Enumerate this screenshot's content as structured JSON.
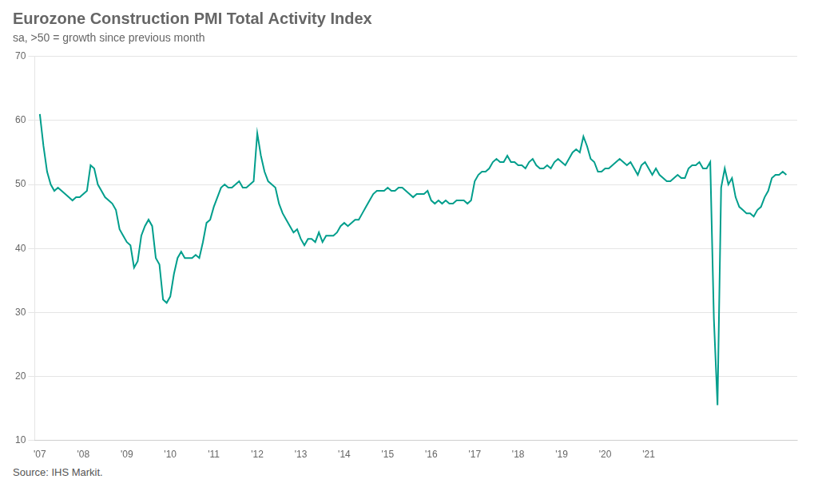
{
  "chart_data": {
    "type": "line",
    "title": "Eurozone Construction PMI Total Activity Index",
    "subtitle": "sa, >50 = growth since previous month",
    "source": "Source: IHS Markit.",
    "color": "#009E8C",
    "grid": "y",
    "x": [
      2007,
      2007.083333,
      2007.166667,
      2007.25,
      2007.333333,
      2007.416667,
      2007.5,
      2007.583333,
      2007.666667,
      2007.75,
      2007.833333,
      2007.916667,
      2008,
      2008.083333,
      2008.166667,
      2008.25,
      2008.333333,
      2008.416667,
      2008.5,
      2008.583333,
      2008.666667,
      2008.75,
      2008.833333,
      2008.916667,
      2009,
      2009.083333,
      2009.166667,
      2009.25,
      2009.333333,
      2009.416667,
      2009.5,
      2009.583333,
      2009.666667,
      2009.75,
      2009.833333,
      2009.916667,
      2010,
      2010.083333,
      2010.166667,
      2010.25,
      2010.333333,
      2010.416667,
      2010.5,
      2010.583333,
      2010.666667,
      2010.75,
      2010.833333,
      2010.916667,
      2011,
      2011.083333,
      2011.166667,
      2011.25,
      2011.333333,
      2011.416667,
      2011.5,
      2011.583333,
      2011.666667,
      2011.75,
      2011.833333,
      2011.916667,
      2012,
      2012.083333,
      2012.166667,
      2012.25,
      2012.333333,
      2012.416667,
      2012.5,
      2012.583333,
      2012.666667,
      2012.75,
      2012.833333,
      2012.916667,
      2013,
      2013.083333,
      2013.166667,
      2013.25,
      2013.333333,
      2013.416667,
      2013.5,
      2013.583333,
      2013.666667,
      2013.75,
      2013.833333,
      2013.916667,
      2014,
      2014.083333,
      2014.166667,
      2014.25,
      2014.333333,
      2014.416667,
      2014.5,
      2014.583333,
      2014.666667,
      2014.75,
      2014.833333,
      2014.916667,
      2015,
      2015.083333,
      2015.166667,
      2015.25,
      2015.333333,
      2015.416667,
      2015.5,
      2015.583333,
      2015.666667,
      2015.75,
      2015.833333,
      2015.916667,
      2016,
      2016.083333,
      2016.166667,
      2016.25,
      2016.333333,
      2016.416667,
      2016.5,
      2016.583333,
      2016.666667,
      2016.75,
      2016.833333,
      2016.916667,
      2017,
      2017.083333,
      2017.166667,
      2017.25,
      2017.333333,
      2017.416667,
      2017.5,
      2017.583333,
      2017.666667,
      2017.75,
      2017.833333,
      2017.916667,
      2018,
      2018.083333,
      2018.166667,
      2018.25,
      2018.333333,
      2018.416667,
      2018.5,
      2018.583333,
      2018.666667,
      2018.75,
      2018.833333,
      2018.916667,
      2019,
      2019.083333,
      2019.166667,
      2019.25,
      2019.333333,
      2019.416667,
      2019.5,
      2019.583333,
      2019.666667,
      2019.75,
      2019.833333,
      2019.916667,
      2020,
      2020.083333,
      2020.166667,
      2020.25,
      2020.333333,
      2020.416667,
      2020.5,
      2020.583333,
      2020.666667,
      2020.75,
      2020.833333,
      2020.916667,
      2021,
      2021.083333,
      2021.166667,
      2021.25,
      2021.333333,
      2021.416667,
      2021.5,
      2021.583333,
      2021.666667,
      2021.75,
      2021.833333,
      2021.916667,
      2022,
      2022.083333,
      2022.166667,
      2022.25,
      2022.333333,
      2022.416667,
      2022.5,
      2022.583333,
      2022.666667,
      2022.75,
      2022.833333,
      2022.916667,
      2023,
      2023.083333,
      2023.166667,
      2023.25,
      2023.333333,
      2023.416667,
      2023.5,
      2023.583333,
      2023.666667,
      2023.75,
      2023.833333,
      2023.916667,
      2024,
      2024.083333,
      2024.166667
    ],
    "values": [
      61.0,
      56.0,
      52.0,
      50.0,
      49.0,
      49.5,
      49.0,
      48.5,
      48.0,
      47.5,
      48.0,
      48.0,
      48.5,
      49.0,
      53.0,
      52.5,
      50.0,
      49.0,
      48.0,
      47.5,
      47.0,
      46.0,
      43.0,
      42.0,
      41.0,
      40.5,
      37.0,
      38.0,
      42.0,
      43.5,
      44.5,
      43.5,
      38.5,
      37.5,
      32.0,
      31.5,
      32.5,
      36.0,
      38.5,
      39.5,
      38.5,
      38.5,
      38.5,
      39.0,
      38.5,
      41.0,
      44.0,
      44.5,
      46.5,
      48.0,
      49.5,
      50.0,
      49.5,
      49.5,
      50.0,
      50.5,
      49.5,
      49.5,
      50.0,
      50.5,
      58.0,
      54.5,
      52.0,
      50.5,
      50.0,
      49.5,
      47.0,
      45.5,
      44.5,
      43.5,
      42.5,
      43.0,
      41.5,
      40.5,
      41.5,
      41.5,
      41.0,
      42.5,
      41.0,
      42.0,
      42.0,
      42.0,
      42.5,
      43.5,
      44.0,
      43.5,
      44.0,
      44.5,
      44.5,
      45.5,
      46.5,
      47.5,
      48.5,
      49.0,
      49.0,
      49.0,
      49.5,
      49.0,
      49.0,
      49.5,
      49.5,
      49.0,
      48.5,
      48.0,
      48.5,
      48.5,
      48.5,
      49.0,
      47.5,
      47.0,
      47.5,
      47.0,
      47.5,
      47.0,
      47.0,
      47.5,
      47.5,
      47.5,
      47.0,
      47.5,
      50.5,
      51.5,
      52.0,
      52.0,
      52.5,
      53.5,
      54.0,
      53.5,
      53.5,
      54.5,
      53.5,
      53.5,
      53.0,
      53.0,
      52.5,
      53.5,
      54.0,
      53.0,
      52.5,
      52.5,
      53.0,
      52.5,
      53.5,
      54.0,
      53.5,
      53.0,
      54.0,
      55.0,
      55.5,
      55.0,
      57.5,
      56.0,
      54.0,
      53.5,
      52.0,
      52.0,
      52.5,
      52.5,
      53.0,
      53.5,
      54.0,
      53.5,
      53.0,
      53.5,
      52.5,
      51.5,
      53.0,
      53.5,
      52.5,
      51.5,
      52.5,
      51.5,
      51.0,
      50.5,
      50.5,
      51.0,
      51.5,
      51.0,
      51.0,
      52.5,
      53.0,
      53.0,
      53.5,
      52.5,
      52.5,
      53.5,
      29.0,
      15.5,
      49.5,
      52.5,
      50.0,
      51.0,
      48.0,
      46.5,
      46.0,
      45.5,
      45.5,
      45.0,
      46.0,
      46.5,
      48.0,
      49.0,
      51.0,
      51.5,
      51.5,
      52.0,
      51.5
    ],
    "xlim": [
      2006.88,
      2024.416667
    ],
    "xticks": [
      {
        "value": 2007,
        "label": "'07"
      },
      {
        "value": 2008,
        "label": "'08"
      },
      {
        "value": 2009,
        "label": "'09"
      },
      {
        "value": 2010,
        "label": "'10"
      },
      {
        "value": 2011,
        "label": "'11"
      },
      {
        "value": 2012,
        "label": "'12"
      },
      {
        "value": 2013,
        "label": "'13"
      },
      {
        "value": 2014,
        "label": "'14"
      },
      {
        "value": 2015,
        "label": "'15"
      },
      {
        "value": 2016,
        "label": "'16"
      },
      {
        "value": 2017,
        "label": "'17"
      },
      {
        "value": 2018,
        "label": "'18"
      },
      {
        "value": 2019,
        "label": "'19"
      },
      {
        "value": 2020,
        "label": "'20"
      },
      {
        "value": 2021,
        "label": "'21"
      }
    ],
    "ylim": [
      10,
      70
    ],
    "yticks": [
      10,
      20,
      30,
      40,
      50,
      60,
      70
    ]
  }
}
